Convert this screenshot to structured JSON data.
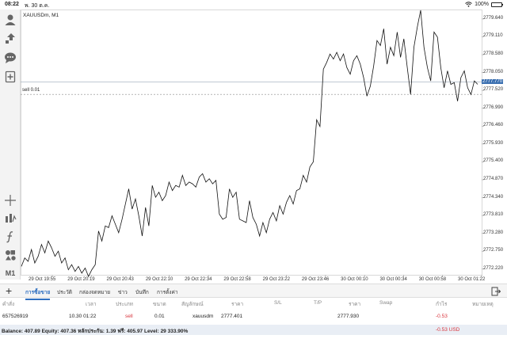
{
  "status": {
    "time": "08:22",
    "date": "พ. 30 ต.ค.",
    "battery": "100%",
    "battery_level": 1.0
  },
  "toolbar": {
    "icons": [
      "account-icon",
      "trade-icon",
      "chat-icon",
      "new-order-icon",
      "crosshair-icon",
      "indicators-icon",
      "function-icon",
      "objects-icon"
    ],
    "timeframe": "M1"
  },
  "chart": {
    "symbol": "XAUUSDm, M1",
    "sell_line_label": "sell 0.01",
    "current_price": "2777.770",
    "colors": {
      "line": "#111111",
      "grid": "#e6e6e6",
      "bid_line": "#9aa7b8",
      "price_badge": "#3a6fb0"
    }
  },
  "chart_data": {
    "type": "line",
    "x_tick_labels": [
      "29 Oct 19:55",
      "29 Oct 20:19",
      "29 Oct 20:43",
      "29 Oct 22:10",
      "29 Oct 22:34",
      "29 Oct 22:58",
      "29 Oct 23:22",
      "29 Oct 23:46",
      "30 Oct 00:10",
      "30 Oct 00:34",
      "30 Oct 00:58",
      "30 Oct 01:22"
    ],
    "y_tick_labels": [
      "2779.640",
      "2779.110",
      "2778.580",
      "2778.050",
      "2777.520",
      "2776.990",
      "2776.460",
      "2775.930",
      "2775.400",
      "2774.870",
      "2774.340",
      "2773.810",
      "2773.280",
      "2772.750",
      "2772.220"
    ],
    "ylim": [
      2772.05,
      2779.92
    ],
    "sell_price": 2777.401,
    "current_price": 2777.77,
    "values": [
      2772.3,
      2772.55,
      2772.45,
      2772.8,
      2772.4,
      2772.6,
      2772.95,
      2772.7,
      2773.05,
      2772.85,
      2772.6,
      2772.75,
      2772.4,
      2772.55,
      2772.2,
      2772.35,
      2772.15,
      2772.3,
      2772.1,
      2772.25,
      2772.0,
      2772.2,
      2772.35,
      2773.35,
      2773.05,
      2773.5,
      2773.45,
      2773.8,
      2773.55,
      2773.3,
      2773.7,
      2774.15,
      2774.6,
      2774.0,
      2774.3,
      2773.8,
      2773.2,
      2774.05,
      2773.5,
      2774.7,
      2774.35,
      2774.5,
      2774.25,
      2774.4,
      2774.8,
      2774.55,
      2774.7,
      2774.65,
      2775.0,
      2774.7,
      2774.8,
      2774.75,
      2774.65,
      2774.95,
      2775.05,
      2774.8,
      2774.9,
      2774.75,
      2774.85,
      2773.85,
      2773.7,
      2773.75,
      2774.6,
      2774.35,
      2774.5,
      2773.7,
      2773.65,
      2773.6,
      2774.25,
      2773.75,
      2773.55,
      2773.2,
      2773.6,
      2773.3,
      2773.7,
      2773.9,
      2773.65,
      2774.1,
      2773.85,
      2774.2,
      2774.4,
      2774.15,
      2774.55,
      2774.6,
      2775.0,
      2774.8,
      2775.25,
      2775.4,
      2776.65,
      2776.45,
      2778.15,
      2778.35,
      2778.6,
      2778.45,
      2778.65,
      2778.4,
      2778.6,
      2778.2,
      2778.0,
      2778.4,
      2778.55,
      2778.3,
      2777.9,
      2777.35,
      2777.65,
      2778.25,
      2779.0,
      2778.85,
      2779.35,
      2778.3,
      2778.8,
      2778.55,
      2779.25,
      2778.5,
      2779.05,
      2778.2,
      2777.4,
      2778.8,
      2779.4,
      2779.9,
      2778.8,
      2778.2,
      2777.8,
      2779.25,
      2779.1,
      2778.2,
      2777.6,
      2778.1,
      2777.7,
      2777.75,
      2777.2,
      2777.9,
      2778.1,
      2777.6,
      2777.4,
      2777.8,
      2777.7
    ]
  },
  "tabs": {
    "items": [
      "การซื้อขาย",
      "ประวัติ",
      "กล่องจดหมาย",
      "ข่าว",
      "บันทึก",
      "การตั้งค่า"
    ],
    "active_index": 0
  },
  "table": {
    "headers": [
      "คำสั่ง",
      "เวลา",
      "ประเภท",
      "ขนาด",
      "สัญลักษณ์",
      "ราคา",
      "S/L",
      "T/P",
      "ราคา",
      "Swap",
      "กำไร",
      "หมายเหตุ"
    ],
    "row": {
      "order": "657526919",
      "time": "10.30 01:22",
      "type": "sell",
      "volume": "0.01",
      "symbol": "xauusdm",
      "price": "2777.401",
      "sl": "",
      "tp": "",
      "current": "2777.930",
      "swap": "",
      "profit": "-0.53",
      "comment": ""
    }
  },
  "balance": {
    "text": "Balance: 407.89 Equity: 407.36 หลักประกัน: 1.39 ฟรี: 405.97 Level: 29 333.90%",
    "profit": "-0.53  USD"
  }
}
